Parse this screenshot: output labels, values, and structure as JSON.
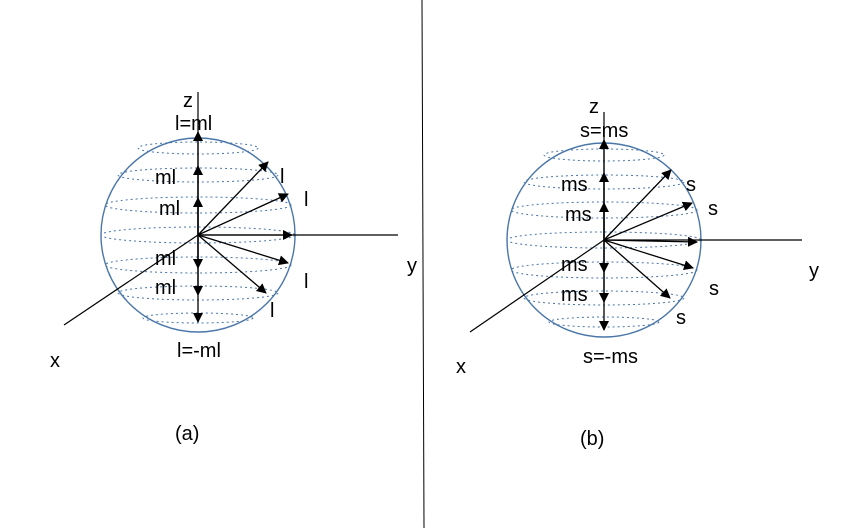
{
  "panel_a": {
    "caption": "(a)",
    "axis_x": "x",
    "axis_y": "y",
    "axis_z": "z",
    "top_label": "l=ml",
    "bottom_label": "l=-ml",
    "ml_labels": [
      "ml",
      "ml",
      "ml",
      "ml"
    ],
    "l_labels": [
      "l",
      "l",
      "l",
      "l"
    ]
  },
  "panel_b": {
    "caption": "(b)",
    "axis_x": "x",
    "axis_y": "y",
    "axis_z": "z",
    "top_label": "s=ms",
    "bottom_label": "s=-ms",
    "ms_labels": [
      "ms",
      "ms",
      "ms",
      "ms"
    ],
    "s_labels": [
      "s",
      "s",
      "s",
      "s"
    ]
  },
  "colors": {
    "sphere": "#4a76a8",
    "lines": "#000000"
  }
}
